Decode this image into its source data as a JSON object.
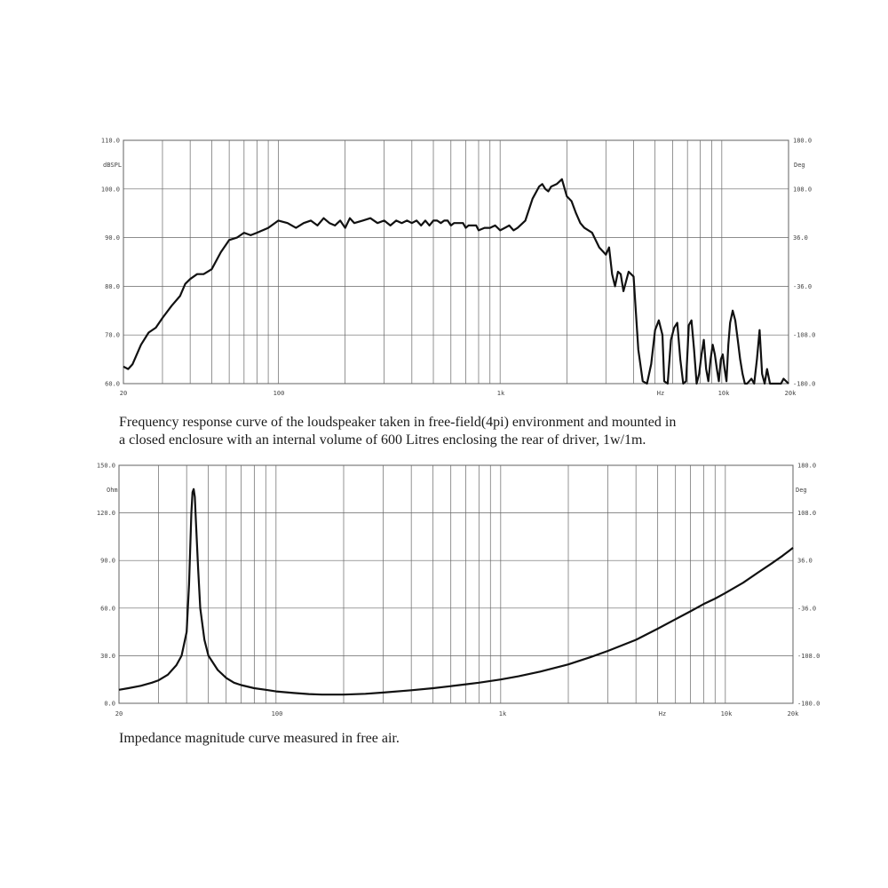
{
  "chart_data": [
    {
      "type": "line",
      "title": "",
      "caption_lines": [
        "Frequency response curve of the loudspeaker taken in free-field(4pi) environment and mounted in",
        "a closed enclosure  with an internal volume of 600 Litres enclosing the rear of driver, 1w/1m."
      ],
      "x_scale": "log",
      "xlim": [
        20,
        20000
      ],
      "ylim": [
        60,
        110
      ],
      "ylim_right": [
        -180,
        180
      ],
      "grid": true,
      "x_tick_labels": [
        "20",
        "100",
        "1k",
        "Hz",
        "10k",
        "20k"
      ],
      "y_left_unit": "dBSPL",
      "y_right_unit": "Deg",
      "y_left_ticks": [
        "110.0",
        "100.0",
        "90.0",
        "80.0",
        "70.0",
        "60.0"
      ],
      "y_right_ticks": [
        "180.0",
        "108.0",
        "36.0",
        "-36.0",
        "-108.0",
        "-180.0"
      ],
      "color": "#111111",
      "x": [
        20,
        21,
        22,
        24,
        26,
        28,
        30,
        33,
        36,
        38,
        40,
        43,
        46,
        50,
        55,
        60,
        65,
        70,
        75,
        80,
        90,
        100,
        110,
        120,
        130,
        140,
        150,
        160,
        170,
        180,
        190,
        200,
        210,
        220,
        240,
        260,
        280,
        300,
        320,
        340,
        360,
        380,
        400,
        420,
        440,
        460,
        480,
        500,
        520,
        540,
        560,
        580,
        600,
        620,
        650,
        680,
        700,
        720,
        750,
        780,
        800,
        850,
        900,
        950,
        1000,
        1050,
        1100,
        1150,
        1200,
        1300,
        1400,
        1500,
        1550,
        1600,
        1650,
        1700,
        1800,
        1850,
        1900,
        2000,
        2100,
        2200,
        2300,
        2400,
        2600,
        2800,
        3000,
        3100,
        3200,
        3300,
        3400,
        3500,
        3600,
        3700,
        3800,
        3900,
        4000,
        4200,
        4400,
        4600,
        4800,
        5000,
        5200,
        5400,
        5500,
        5700,
        5900,
        6100,
        6300,
        6500,
        6700,
        6900,
        7100,
        7300,
        7500,
        7700,
        7900,
        8100,
        8300,
        8500,
        8700,
        8900,
        9100,
        9300,
        9500,
        9700,
        9900,
        10100,
        10300,
        10500,
        10700,
        10900,
        11200,
        11500,
        11800,
        12100,
        12400,
        12700,
        13000,
        13300,
        13600,
        14000,
        14400,
        14800,
        15200,
        15600,
        16000,
        16500,
        17000,
        17500,
        18000,
        18500,
        19000,
        20000
      ],
      "y": [
        63.5,
        63.0,
        64.0,
        68.0,
        70.5,
        71.5,
        73.5,
        76.0,
        78.0,
        80.5,
        81.5,
        82.5,
        82.5,
        83.5,
        87.0,
        89.5,
        90.0,
        91.0,
        90.5,
        91.0,
        92.0,
        93.5,
        93.0,
        92.0,
        93.0,
        93.5,
        92.5,
        94.0,
        93.0,
        92.5,
        93.5,
        92.0,
        94.0,
        93.0,
        93.5,
        94.0,
        93.0,
        93.5,
        92.5,
        93.5,
        93.0,
        93.5,
        93.0,
        93.5,
        92.5,
        93.5,
        92.5,
        93.5,
        93.5,
        93.0,
        93.5,
        93.5,
        92.5,
        93.0,
        93.0,
        93.0,
        92.0,
        92.5,
        92.5,
        92.5,
        91.5,
        92.0,
        92.0,
        92.5,
        91.5,
        92.0,
        92.5,
        91.5,
        92.0,
        93.5,
        98.0,
        100.5,
        101.0,
        100.0,
        99.5,
        100.5,
        101.0,
        101.5,
        102.0,
        98.5,
        97.5,
        95.0,
        93.0,
        92.0,
        91.0,
        88.0,
        86.5,
        88.0,
        82.5,
        80.0,
        83.0,
        82.5,
        79.0,
        81.0,
        83.0,
        82.5,
        82.0,
        67.0,
        60.5,
        60.0,
        64.0,
        71.0,
        73.0,
        70.0,
        60.5,
        60.0,
        69.0,
        71.5,
        72.5,
        65.0,
        60.0,
        60.5,
        72.0,
        73.0,
        67.0,
        60.0,
        62.0,
        66.0,
        69.0,
        63.0,
        60.5,
        65.0,
        68.0,
        66.0,
        63.0,
        60.5,
        65.0,
        66.0,
        63.0,
        60.5,
        68.0,
        72.5,
        75.0,
        73.0,
        69.0,
        65.0,
        62.0,
        60.0,
        60.0,
        60.5,
        61.0,
        60.0,
        65.0,
        71.0,
        62.0,
        60.0,
        63.0,
        60.0,
        60.0,
        60.0,
        60.0,
        60.0,
        61.0,
        60.0
      ]
    },
    {
      "type": "line",
      "title": "",
      "caption_lines": [
        "Impedance magnitude curve measured in free air."
      ],
      "x_scale": "log",
      "xlim": [
        20,
        20000
      ],
      "ylim": [
        0,
        150
      ],
      "ylim_right": [
        -180,
        180
      ],
      "grid": true,
      "x_tick_labels": [
        "20",
        "100",
        "1k",
        "Hz",
        "10k",
        "20k"
      ],
      "y_left_unit": "Ohm",
      "y_right_unit": "Deg",
      "y_left_ticks": [
        "150.0",
        "120.0",
        "90.0",
        "60.0",
        "30.0",
        "0.0"
      ],
      "y_right_ticks": [
        "180.0",
        "108.0",
        "36.0",
        "-36.0",
        "-108.0",
        "-180.0"
      ],
      "color": "#111111",
      "x": [
        20,
        22,
        25,
        28,
        30,
        33,
        36,
        38,
        40,
        41,
        42,
        42.5,
        43,
        43.5,
        44,
        45,
        46,
        48,
        50,
        55,
        60,
        65,
        70,
        80,
        90,
        100,
        120,
        140,
        160,
        200,
        250,
        300,
        400,
        500,
        600,
        700,
        800,
        1000,
        1200,
        1500,
        2000,
        2500,
        3000,
        4000,
        5000,
        6000,
        7000,
        8000,
        9000,
        10000,
        12000,
        14000,
        16000,
        18000,
        20000
      ],
      "y": [
        8.5,
        9.5,
        11.0,
        13.0,
        14.5,
        18.0,
        24.0,
        30.0,
        45.0,
        75.0,
        120.0,
        133.0,
        135.0,
        130.0,
        115.0,
        85.0,
        60.0,
        40.0,
        30.0,
        21.0,
        16.0,
        13.0,
        11.5,
        9.5,
        8.5,
        7.5,
        6.5,
        5.8,
        5.5,
        5.5,
        6.0,
        6.8,
        8.2,
        9.5,
        10.8,
        12.0,
        13.0,
        15.0,
        17.0,
        20.0,
        24.5,
        29.0,
        33.0,
        40.0,
        47.0,
        53.0,
        58.0,
        62.5,
        66.0,
        69.5,
        76.0,
        82.5,
        88.0,
        93.0,
        98.0
      ]
    }
  ]
}
